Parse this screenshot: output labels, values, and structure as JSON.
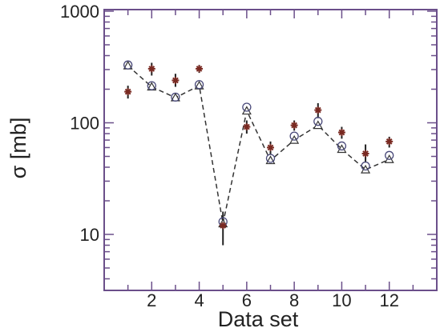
{
  "chart_data": {
    "type": "scatter",
    "xlabel": "Data set",
    "ylabel": "σ  [mb]",
    "xlim": [
      0,
      14
    ],
    "ylim": [
      10,
      1000
    ],
    "yscale": "log",
    "x_ticks": [
      2,
      4,
      6,
      8,
      10,
      12
    ],
    "x_tick_labels": [
      "2",
      "4",
      "6",
      "8",
      "10",
      "12"
    ],
    "y_ticks": [
      10,
      100,
      1000
    ],
    "y_tick_labels": [
      "10",
      "100",
      "1000"
    ],
    "grid": false,
    "legend": "none",
    "x": [
      1,
      2,
      3,
      4,
      5,
      6,
      7,
      8,
      9,
      10,
      11,
      12
    ],
    "series": [
      {
        "marker": "star",
        "style": "markers with vertical error bars",
        "values": [
          190,
          305,
          240,
          305,
          12,
          92,
          60,
          95,
          130,
          82,
          53,
          68
        ],
        "error_low": [
          165,
          265,
          210,
          280,
          8,
          80,
          52,
          85,
          110,
          72,
          44,
          60
        ],
        "error_high": [
          215,
          345,
          275,
          330,
          16,
          105,
          68,
          105,
          150,
          92,
          64,
          75
        ]
      },
      {
        "marker": "circle",
        "style": "open markers",
        "values": [
          330,
          215,
          170,
          220,
          13,
          138,
          48,
          76,
          103,
          62,
          41,
          51
        ]
      },
      {
        "marker": "triangle",
        "style": "open markers joined by dashed line",
        "values": [
          325,
          210,
          168,
          215,
          12.5,
          128,
          46,
          70,
          95,
          58,
          38,
          47
        ]
      }
    ],
    "colors": {
      "frame": "#6b4f8a",
      "star": "#7a2a22",
      "errorbar": "#222222",
      "circle": "#4a4a7a",
      "triangle": "#333333",
      "line": "#333333"
    }
  }
}
